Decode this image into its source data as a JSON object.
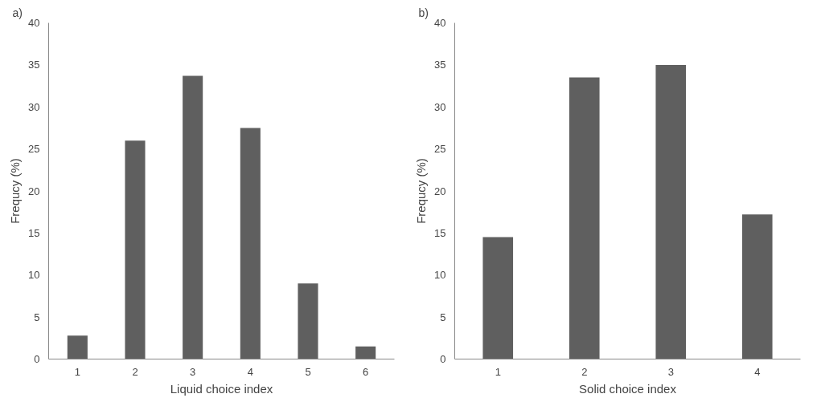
{
  "chart_data": [
    {
      "type": "bar",
      "title": "a)",
      "xlabel": "Liquid choice index",
      "ylabel": "Frequcy (%)",
      "categories": [
        "1",
        "2",
        "3",
        "4",
        "5",
        "6"
      ],
      "values": [
        2.8,
        26,
        33.7,
        27.5,
        9,
        1.5
      ],
      "color": "#5f5f5f",
      "ylim": [
        0,
        40
      ],
      "yticks": [
        0,
        5,
        10,
        15,
        20,
        25,
        30,
        35,
        40
      ],
      "grid": false
    },
    {
      "type": "bar",
      "title": "b)",
      "xlabel": "Solid choice index",
      "ylabel": "Frequcy (%)",
      "categories": [
        "1",
        "2",
        "3",
        "4"
      ],
      "values": [
        14.5,
        33.5,
        35,
        17.2
      ],
      "color": "#5f5f5f",
      "ylim": [
        0,
        40
      ],
      "yticks": [
        0,
        5,
        10,
        15,
        20,
        25,
        30,
        35,
        40
      ],
      "grid": false
    }
  ]
}
